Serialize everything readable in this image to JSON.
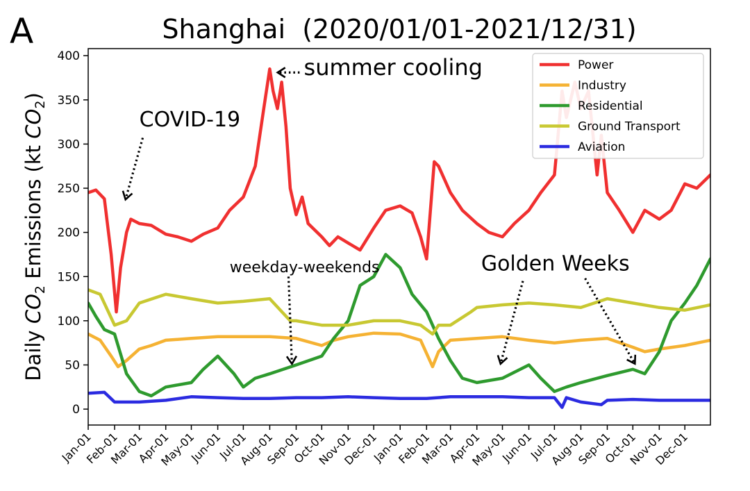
{
  "chart_data": {
    "type": "line",
    "panel_label": "A",
    "title": "Shanghai  (2020/01/01-2021/12/31)",
    "ylabel_parts": [
      "Daily ",
      "CO",
      "2",
      " Emissions (kt ",
      "CO",
      "2",
      ")"
    ],
    "x_range": [
      "2020-01-01",
      "2021-12-31"
    ],
    "ylim": [
      -18,
      408
    ],
    "yticks": [
      0,
      50,
      100,
      150,
      200,
      250,
      300,
      350,
      400
    ],
    "ytick_labels": [
      "0",
      "50",
      "100",
      "150",
      "200",
      "250",
      "300",
      "350",
      "400"
    ],
    "xtick_dates": [
      "2020-01-01",
      "2020-02-01",
      "2020-03-01",
      "2020-04-01",
      "2020-05-01",
      "2020-06-01",
      "2020-07-01",
      "2020-08-01",
      "2020-09-01",
      "2020-10-01",
      "2020-11-01",
      "2020-12-01",
      "2021-01-01",
      "2021-02-01",
      "2021-03-01",
      "2021-04-01",
      "2021-05-01",
      "2021-06-01",
      "2021-07-01",
      "2021-08-01",
      "2021-09-01",
      "2021-10-01",
      "2021-11-01",
      "2021-12-01"
    ],
    "xtick_labels": [
      "Jan-01",
      "Feb-01",
      "Mar-01",
      "Apr-01",
      "May-01",
      "Jun-01",
      "Jul-01",
      "Aug-01",
      "Sep-01",
      "Oct-01",
      "Nov-01",
      "Dec-01",
      "Jan-01",
      "Feb-01",
      "Mar-01",
      "Apr-01",
      "May-01",
      "Jun-01",
      "Jul-01",
      "Aug-01",
      "Sep-01",
      "Oct-01",
      "Nov-01",
      "Dec-01"
    ],
    "legend_position": "top-right",
    "grid": false,
    "series": [
      {
        "name": "Power",
        "color": "#f03030",
        "points": [
          [
            "2020-01-01",
            245
          ],
          [
            "2020-01-10",
            248
          ],
          [
            "2020-01-20",
            238
          ],
          [
            "2020-01-28",
            175
          ],
          [
            "2020-02-03",
            110
          ],
          [
            "2020-02-08",
            160
          ],
          [
            "2020-02-15",
            200
          ],
          [
            "2020-02-20",
            215
          ],
          [
            "2020-03-01",
            210
          ],
          [
            "2020-03-15",
            208
          ],
          [
            "2020-04-01",
            198
          ],
          [
            "2020-04-15",
            195
          ],
          [
            "2020-05-01",
            190
          ],
          [
            "2020-05-15",
            198
          ],
          [
            "2020-06-01",
            205
          ],
          [
            "2020-06-15",
            225
          ],
          [
            "2020-07-01",
            240
          ],
          [
            "2020-07-15",
            275
          ],
          [
            "2020-07-25",
            340
          ],
          [
            "2020-08-01",
            385
          ],
          [
            "2020-08-05",
            360
          ],
          [
            "2020-08-10",
            340
          ],
          [
            "2020-08-15",
            370
          ],
          [
            "2020-08-20",
            320
          ],
          [
            "2020-08-25",
            250
          ],
          [
            "2020-09-01",
            220
          ],
          [
            "2020-09-08",
            240
          ],
          [
            "2020-09-15",
            210
          ],
          [
            "2020-10-01",
            195
          ],
          [
            "2020-10-10",
            185
          ],
          [
            "2020-10-20",
            195
          ],
          [
            "2020-11-01",
            188
          ],
          [
            "2020-11-15",
            180
          ],
          [
            "2020-12-01",
            205
          ],
          [
            "2020-12-15",
            225
          ],
          [
            "2021-01-01",
            230
          ],
          [
            "2021-01-15",
            222
          ],
          [
            "2021-01-25",
            195
          ],
          [
            "2021-02-01",
            170
          ],
          [
            "2021-02-10",
            280
          ],
          [
            "2021-02-15",
            275
          ],
          [
            "2021-03-01",
            245
          ],
          [
            "2021-03-15",
            225
          ],
          [
            "2021-04-01",
            210
          ],
          [
            "2021-04-15",
            200
          ],
          [
            "2021-05-01",
            195
          ],
          [
            "2021-05-15",
            210
          ],
          [
            "2021-06-01",
            225
          ],
          [
            "2021-06-15",
            245
          ],
          [
            "2021-07-01",
            265
          ],
          [
            "2021-07-10",
            360
          ],
          [
            "2021-07-15",
            330
          ],
          [
            "2021-07-25",
            370
          ],
          [
            "2021-08-01",
            340
          ],
          [
            "2021-08-10",
            360
          ],
          [
            "2021-08-20",
            265
          ],
          [
            "2021-08-25",
            310
          ],
          [
            "2021-09-01",
            245
          ],
          [
            "2021-09-15",
            225
          ],
          [
            "2021-10-01",
            200
          ],
          [
            "2021-10-15",
            225
          ],
          [
            "2021-11-01",
            215
          ],
          [
            "2021-11-15",
            225
          ],
          [
            "2021-12-01",
            255
          ],
          [
            "2021-12-15",
            250
          ],
          [
            "2021-12-31",
            265
          ]
        ]
      },
      {
        "name": "Industry",
        "color": "#f5b233",
        "points": [
          [
            "2020-01-01",
            85
          ],
          [
            "2020-01-15",
            78
          ],
          [
            "2020-01-28",
            60
          ],
          [
            "2020-02-05",
            48
          ],
          [
            "2020-02-15",
            55
          ],
          [
            "2020-03-01",
            68
          ],
          [
            "2020-03-15",
            72
          ],
          [
            "2020-04-01",
            78
          ],
          [
            "2020-05-01",
            80
          ],
          [
            "2020-06-01",
            82
          ],
          [
            "2020-07-01",
            82
          ],
          [
            "2020-08-01",
            82
          ],
          [
            "2020-09-01",
            80
          ],
          [
            "2020-10-01",
            72
          ],
          [
            "2020-10-15",
            78
          ],
          [
            "2020-11-01",
            82
          ],
          [
            "2020-12-01",
            86
          ],
          [
            "2021-01-01",
            85
          ],
          [
            "2021-01-25",
            78
          ],
          [
            "2021-02-08",
            48
          ],
          [
            "2021-02-15",
            65
          ],
          [
            "2021-03-01",
            78
          ],
          [
            "2021-04-01",
            80
          ],
          [
            "2021-05-01",
            82
          ],
          [
            "2021-06-01",
            78
          ],
          [
            "2021-07-01",
            75
          ],
          [
            "2021-08-01",
            78
          ],
          [
            "2021-09-01",
            80
          ],
          [
            "2021-10-01",
            70
          ],
          [
            "2021-10-15",
            65
          ],
          [
            "2021-11-01",
            68
          ],
          [
            "2021-12-01",
            72
          ],
          [
            "2021-12-31",
            78
          ]
        ]
      },
      {
        "name": "Residential",
        "color": "#2e9a2e",
        "points": [
          [
            "2020-01-01",
            120
          ],
          [
            "2020-01-10",
            105
          ],
          [
            "2020-01-20",
            90
          ],
          [
            "2020-02-01",
            85
          ],
          [
            "2020-02-15",
            40
          ],
          [
            "2020-03-01",
            20
          ],
          [
            "2020-03-15",
            15
          ],
          [
            "2020-04-01",
            25
          ],
          [
            "2020-05-01",
            30
          ],
          [
            "2020-05-15",
            45
          ],
          [
            "2020-06-01",
            60
          ],
          [
            "2020-06-20",
            40
          ],
          [
            "2020-07-01",
            25
          ],
          [
            "2020-07-15",
            35
          ],
          [
            "2020-08-01",
            40
          ],
          [
            "2020-09-01",
            50
          ],
          [
            "2020-10-01",
            60
          ],
          [
            "2020-10-15",
            80
          ],
          [
            "2020-11-01",
            100
          ],
          [
            "2020-11-15",
            140
          ],
          [
            "2020-12-01",
            150
          ],
          [
            "2020-12-15",
            175
          ],
          [
            "2021-01-01",
            160
          ],
          [
            "2021-01-15",
            130
          ],
          [
            "2021-02-01",
            110
          ],
          [
            "2021-02-15",
            80
          ],
          [
            "2021-03-01",
            55
          ],
          [
            "2021-03-15",
            35
          ],
          [
            "2021-04-01",
            30
          ],
          [
            "2021-05-01",
            35
          ],
          [
            "2021-06-01",
            50
          ],
          [
            "2021-06-15",
            35
          ],
          [
            "2021-07-01",
            20
          ],
          [
            "2021-07-15",
            25
          ],
          [
            "2021-08-01",
            30
          ],
          [
            "2021-09-01",
            38
          ],
          [
            "2021-10-01",
            45
          ],
          [
            "2021-10-15",
            40
          ],
          [
            "2021-11-01",
            65
          ],
          [
            "2021-11-15",
            100
          ],
          [
            "2021-12-01",
            120
          ],
          [
            "2021-12-15",
            140
          ],
          [
            "2021-12-31",
            170
          ]
        ]
      },
      {
        "name": "Ground Transport",
        "color": "#c8c832",
        "points": [
          [
            "2020-01-01",
            135
          ],
          [
            "2020-01-15",
            130
          ],
          [
            "2020-02-01",
            95
          ],
          [
            "2020-02-15",
            100
          ],
          [
            "2020-03-01",
            120
          ],
          [
            "2020-04-01",
            130
          ],
          [
            "2020-05-01",
            125
          ],
          [
            "2020-06-01",
            120
          ],
          [
            "2020-07-01",
            122
          ],
          [
            "2020-08-01",
            125
          ],
          [
            "2020-08-25",
            100
          ],
          [
            "2020-09-01",
            100
          ],
          [
            "2020-10-01",
            95
          ],
          [
            "2020-11-01",
            95
          ],
          [
            "2020-12-01",
            100
          ],
          [
            "2021-01-01",
            100
          ],
          [
            "2021-01-25",
            95
          ],
          [
            "2021-02-08",
            85
          ],
          [
            "2021-02-15",
            95
          ],
          [
            "2021-03-01",
            95
          ],
          [
            "2021-03-25",
            110
          ],
          [
            "2021-04-01",
            115
          ],
          [
            "2021-05-01",
            118
          ],
          [
            "2021-06-01",
            120
          ],
          [
            "2021-07-01",
            118
          ],
          [
            "2021-08-01",
            115
          ],
          [
            "2021-09-01",
            125
          ],
          [
            "2021-10-01",
            120
          ],
          [
            "2021-11-01",
            115
          ],
          [
            "2021-12-01",
            112
          ],
          [
            "2021-12-31",
            118
          ]
        ]
      },
      {
        "name": "Aviation",
        "color": "#2b2be0",
        "points": [
          [
            "2020-01-01",
            18
          ],
          [
            "2020-01-20",
            19
          ],
          [
            "2020-02-01",
            8
          ],
          [
            "2020-03-01",
            8
          ],
          [
            "2020-04-01",
            10
          ],
          [
            "2020-05-01",
            14
          ],
          [
            "2020-06-01",
            13
          ],
          [
            "2020-07-01",
            12
          ],
          [
            "2020-08-01",
            12
          ],
          [
            "2020-09-01",
            13
          ],
          [
            "2020-10-01",
            13
          ],
          [
            "2020-11-01",
            14
          ],
          [
            "2020-12-01",
            13
          ],
          [
            "2021-01-01",
            12
          ],
          [
            "2021-02-01",
            12
          ],
          [
            "2021-03-01",
            14
          ],
          [
            "2021-04-01",
            14
          ],
          [
            "2021-05-01",
            14
          ],
          [
            "2021-06-01",
            13
          ],
          [
            "2021-07-01",
            13
          ],
          [
            "2021-07-10",
            2
          ],
          [
            "2021-07-15",
            13
          ],
          [
            "2021-08-01",
            8
          ],
          [
            "2021-08-25",
            5
          ],
          [
            "2021-09-01",
            10
          ],
          [
            "2021-10-01",
            11
          ],
          [
            "2021-11-01",
            10
          ],
          [
            "2021-12-01",
            10
          ],
          [
            "2021-12-31",
            10
          ]
        ]
      }
    ],
    "annotations": [
      {
        "text": "summer cooling",
        "text_at": [
          "2020-09-10",
          378
        ],
        "arrow_from": [
          "2020-09-05",
          381
        ],
        "arrow_to": [
          "2020-08-11",
          381
        ]
      },
      {
        "text": "COVID-19",
        "text_at": [
          "2020-03-01",
          320
        ],
        "arrow_from": [
          "2020-03-05",
          307
        ],
        "arrow_to": [
          "2020-02-14",
          238
        ]
      },
      {
        "text": "weekday-weekends",
        "text_at": [
          "2020-06-15",
          155
        ],
        "arrow_from": [
          "2020-08-23",
          150
        ],
        "arrow_to": [
          "2020-08-27",
          52
        ]
      },
      {
        "text": "Golden Weeks",
        "text_at": [
          "2021-04-06",
          157
        ],
        "arrow_from": [
          "2021-05-25",
          145
        ],
        "arrow_to": [
          "2021-04-29",
          52
        ]
      },
      {
        "text": "",
        "text_at": [
          "2021-07-15",
          155
        ],
        "arrow_from": [
          "2021-08-06",
          148
        ],
        "arrow_to": [
          "2021-10-03",
          52
        ]
      }
    ]
  }
}
